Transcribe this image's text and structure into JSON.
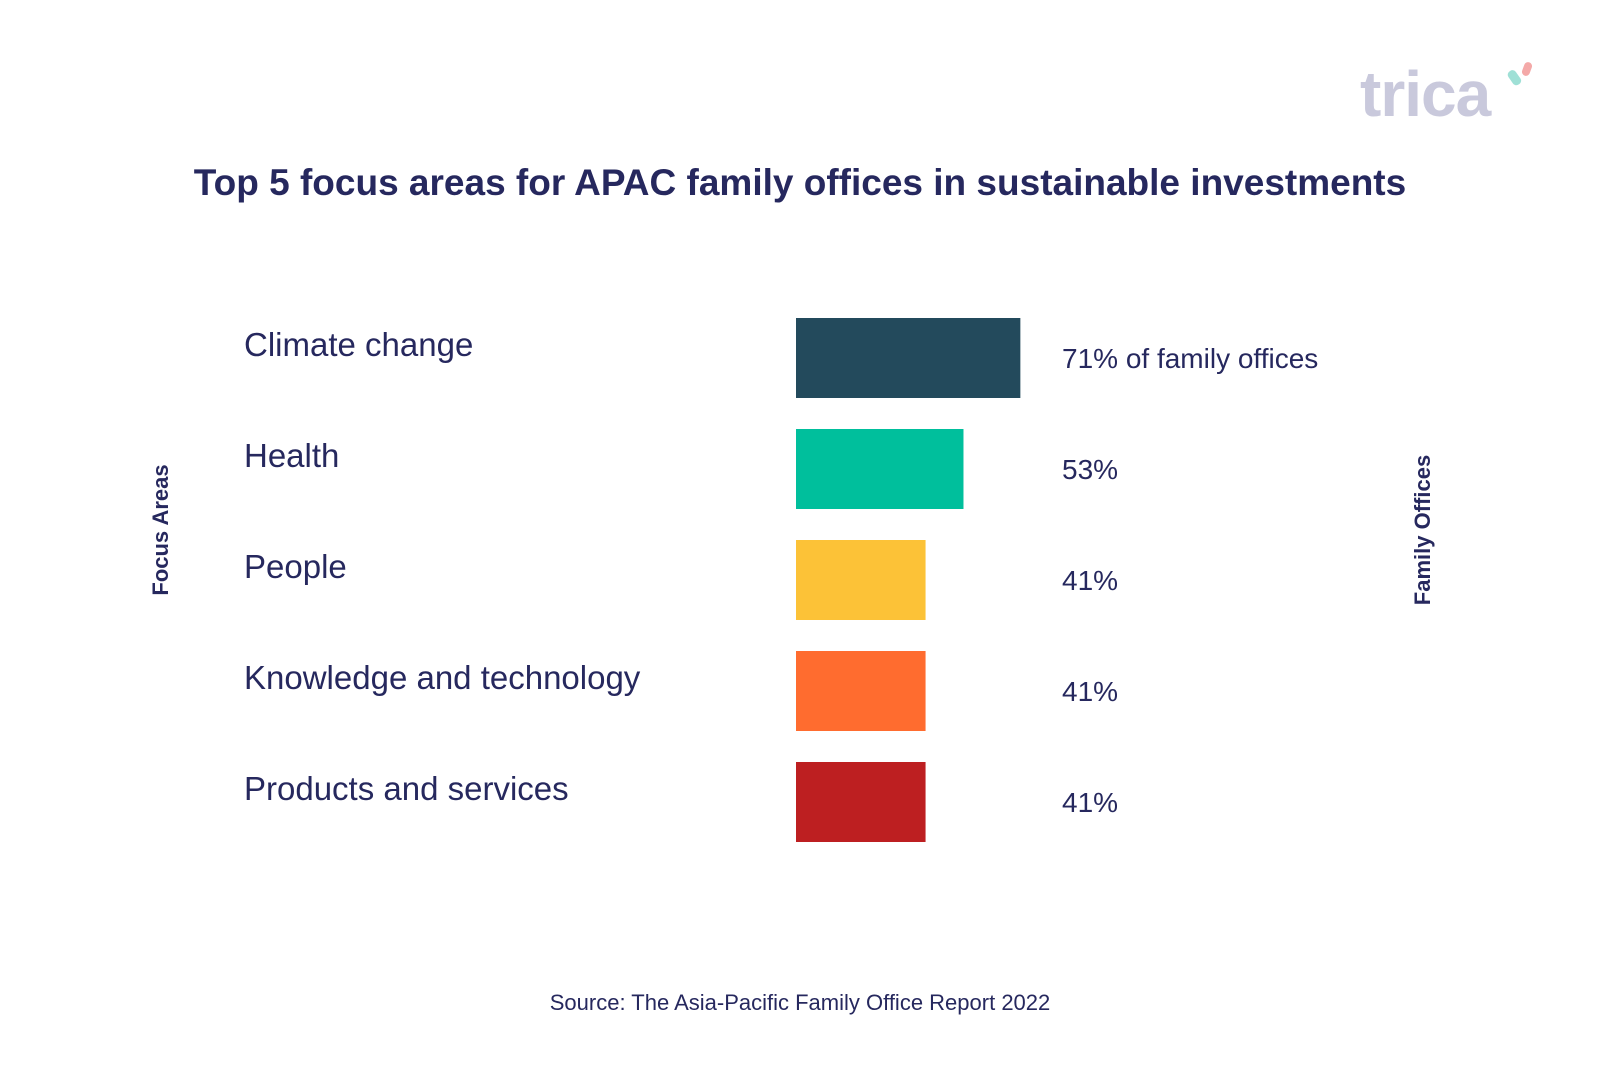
{
  "logo": {
    "text": "trica",
    "colors": [
      "#f4a9a8",
      "#9fe0d6",
      "#c9c9dc"
    ]
  },
  "chart_data": {
    "type": "bar",
    "orientation": "horizontal",
    "title": "Top 5 focus areas for APAC family offices in sustainable investments",
    "xlabel": "Family Offices",
    "ylabel": "Focus Areas",
    "categories": [
      "Climate change",
      "Health",
      "People",
      "Knowledge and technology",
      "Products and services"
    ],
    "values": [
      71,
      53,
      41,
      41,
      41
    ],
    "value_labels": [
      "71% of family offices",
      "53%",
      "41%",
      "41%",
      "41%"
    ],
    "colors": [
      "#234a5c",
      "#00bf9c",
      "#fcc237",
      "#ff6c2f",
      "#bd1f21"
    ],
    "grid": false,
    "legend": "none"
  },
  "source": "Source: The Asia-Pacific Family Office Report 2022"
}
